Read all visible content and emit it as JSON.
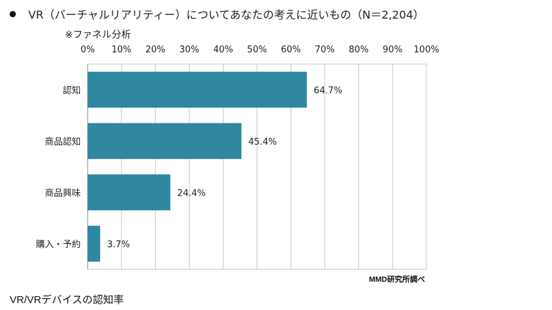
{
  "title": "VR（バーチャルリアリティー）についてあなたの考えに近いもの（N＝2,204）",
  "subtitle": "※ファネル分析",
  "source": "MMD研究所調べ",
  "caption": "VR/VRデバイスの認知率",
  "colors": {
    "bar": "#2f88a0",
    "grid": "#c8c8c8",
    "axis": "#888888"
  },
  "chart_data": {
    "type": "bar",
    "orientation": "horizontal",
    "categories": [
      "認知",
      "商品認知",
      "商品興味",
      "購入・予約"
    ],
    "values": [
      64.7,
      45.4,
      24.4,
      3.7
    ],
    "value_labels": [
      "64.7%",
      "45.4%",
      "24.4%",
      "3.7%"
    ],
    "xlim": [
      0,
      100
    ],
    "xticks": [
      0,
      10,
      20,
      30,
      40,
      50,
      60,
      70,
      80,
      90,
      100
    ],
    "xtick_labels": [
      "0%",
      "10%",
      "20%",
      "30%",
      "40%",
      "50%",
      "60%",
      "70%",
      "80%",
      "90%",
      "100%"
    ],
    "x_axis_position": "top",
    "grid": true,
    "legend": "none"
  }
}
